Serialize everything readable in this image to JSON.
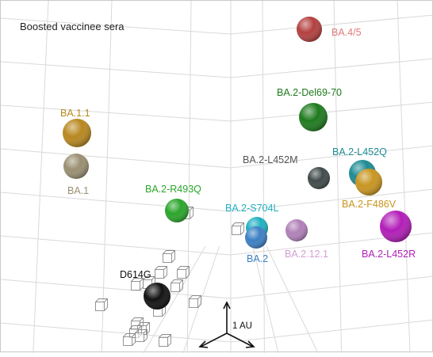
{
  "title": "Boosted vaccinee sera",
  "scale_label": "1 AU",
  "antigens": [
    {
      "id": "ba45",
      "label": "BA.4/5",
      "color": "#b3403f",
      "label_color": "#e07a7a"
    },
    {
      "id": "ba2del",
      "label": "BA.2-Del69-70",
      "color": "#1e7a1e",
      "label_color": "#1e7a1e"
    },
    {
      "id": "ba11",
      "label": "BA.1.1",
      "color": "#b8871f",
      "label_color": "#b8871f"
    },
    {
      "id": "ba1",
      "label": "BA.1",
      "color": "#9a8f72",
      "label_color": "#9a8f72"
    },
    {
      "id": "l452m",
      "label": "BA.2-L452M",
      "color": "#404a4a",
      "label_color": "#555555"
    },
    {
      "id": "l452q",
      "label": "BA.2-L452Q",
      "color": "#1d8a92",
      "label_color": "#1d8a92"
    },
    {
      "id": "f486v",
      "label": "BA.2-F486V",
      "color": "#c8951f",
      "label_color": "#c8951f"
    },
    {
      "id": "r493q",
      "label": "BA.2-R493Q",
      "color": "#2aa52a",
      "label_color": "#2aa52a"
    },
    {
      "id": "s704l",
      "label": "BA.2-S704L",
      "color": "#1fb0c0",
      "label_color": "#1fb0c0"
    },
    {
      "id": "ba2",
      "label": "BA.2",
      "color": "#3b7fc4",
      "label_color": "#3b7fc4"
    },
    {
      "id": "ba212",
      "label": "BA.2.12.1",
      "color": "#b080b8",
      "label_color": "#d29fd4"
    },
    {
      "id": "l452r",
      "label": "BA.2-L452R",
      "color": "#b21db8",
      "label_color": "#b21db8"
    },
    {
      "id": "d614g",
      "label": "D614G",
      "color": "#111111",
      "label_color": "#111111"
    }
  ]
}
